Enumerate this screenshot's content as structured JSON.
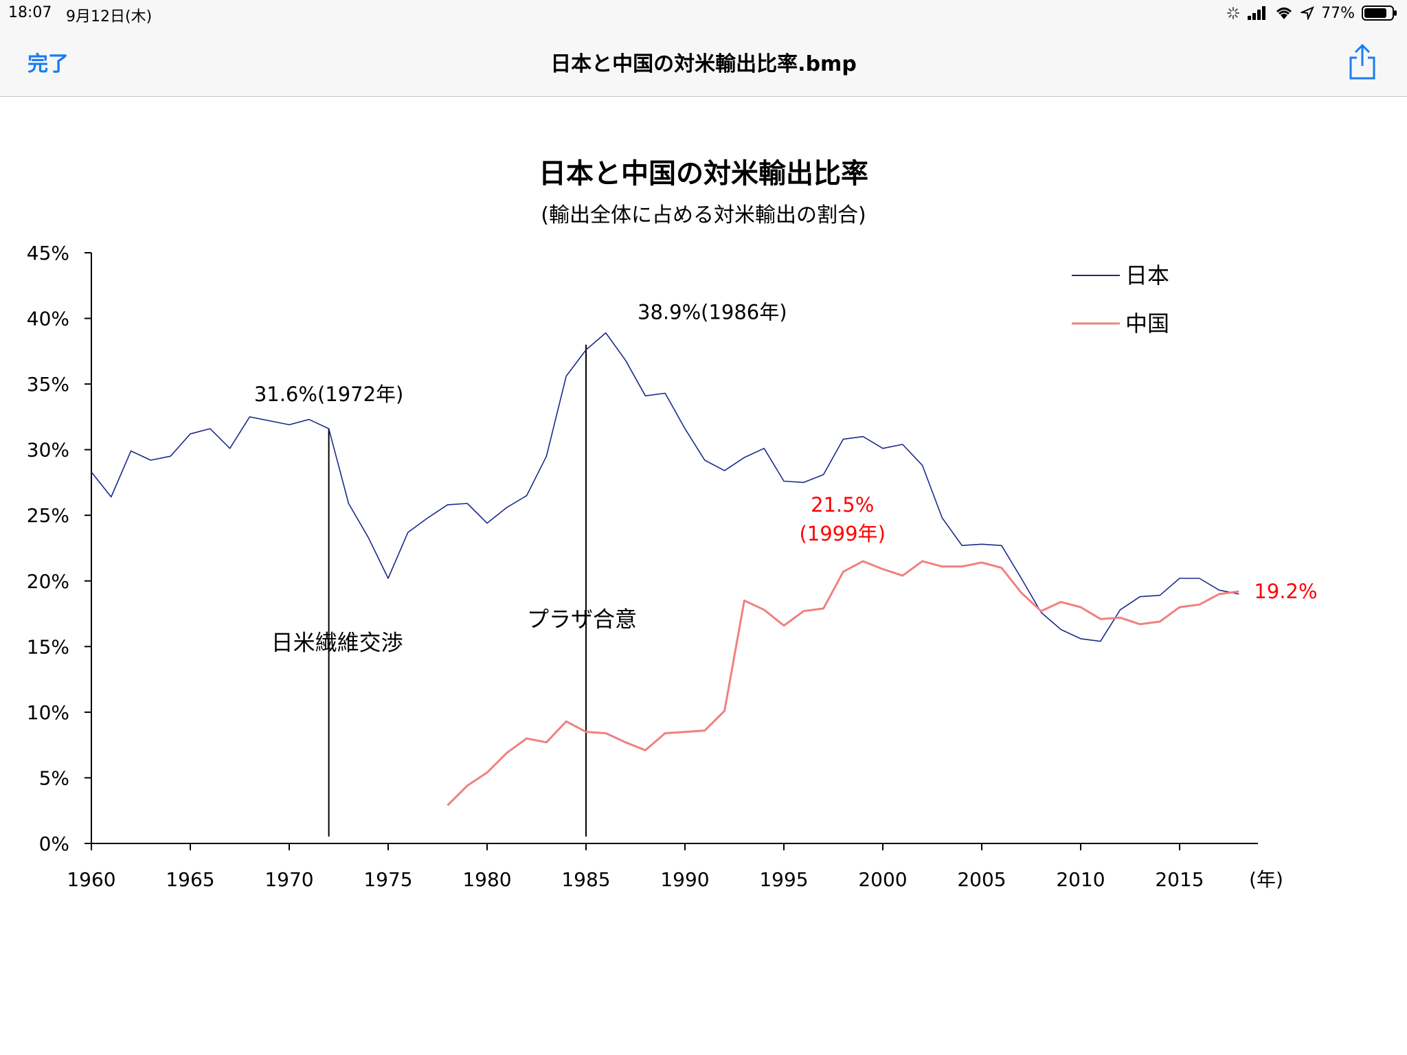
{
  "status": {
    "time": "18:07",
    "date": "9月12日(木)",
    "battery": "77%",
    "icons": [
      "activity-spinner-icon",
      "signal-icon",
      "wifi-icon",
      "location-icon",
      "battery-icon"
    ]
  },
  "nav": {
    "done_label": "完了",
    "title": "日本と中国の対米輸出比率.bmp",
    "share_icon": "share-icon",
    "accent": "#1a7cf5"
  },
  "chart_data": {
    "type": "line",
    "title": "日本と中国の対米輸出比率",
    "subtitle": "(輸出全体に占める対米輸出の割合)",
    "xlabel": "(年)",
    "ylabel": "",
    "xlim": [
      1960,
      2019
    ],
    "ylim": [
      0,
      45
    ],
    "x_ticks": [
      "1960",
      "1965",
      "1970",
      "1975",
      "1980",
      "1985",
      "1990",
      "1995",
      "2000",
      "2005",
      "2010",
      "2015"
    ],
    "y_ticks": [
      "0%",
      "5%",
      "10%",
      "15%",
      "20%",
      "25%",
      "30%",
      "35%",
      "40%",
      "45%"
    ],
    "legend_position": "top-right",
    "grid": false,
    "series": [
      {
        "name": "日本",
        "color": "#1a2a8a",
        "x": [
          1960,
          1961,
          1962,
          1963,
          1964,
          1965,
          1966,
          1967,
          1968,
          1969,
          1970,
          1971,
          1972,
          1973,
          1974,
          1975,
          1976,
          1977,
          1978,
          1979,
          1980,
          1981,
          1982,
          1983,
          1984,
          1985,
          1986,
          1987,
          1988,
          1989,
          1990,
          1991,
          1992,
          1993,
          1994,
          1995,
          1996,
          1997,
          1998,
          1999,
          2000,
          2001,
          2002,
          2003,
          2004,
          2005,
          2006,
          2007,
          2008,
          2009,
          2010,
          2011,
          2012,
          2013,
          2014,
          2015,
          2016,
          2017,
          2018
        ],
        "values": [
          28.3,
          26.4,
          29.9,
          29.2,
          29.5,
          31.2,
          31.6,
          30.1,
          32.5,
          32.2,
          31.9,
          32.3,
          31.6,
          25.9,
          23.3,
          20.2,
          23.7,
          24.8,
          25.8,
          25.9,
          24.4,
          25.6,
          26.5,
          29.5,
          35.6,
          37.6,
          38.9,
          36.8,
          34.1,
          34.3,
          31.6,
          29.2,
          28.4,
          29.4,
          30.1,
          27.6,
          27.5,
          28.1,
          30.8,
          31.0,
          30.1,
          30.4,
          28.8,
          24.8,
          22.7,
          22.8,
          22.7,
          20.2,
          17.6,
          16.3,
          15.6,
          15.4,
          17.8,
          18.8,
          18.9,
          20.2,
          20.2,
          19.3,
          19.0
        ]
      },
      {
        "name": "中国",
        "color": "#f08080",
        "x": [
          1978,
          1979,
          1980,
          1981,
          1982,
          1983,
          1984,
          1985,
          1986,
          1987,
          1988,
          1989,
          1990,
          1991,
          1992,
          1993,
          1994,
          1995,
          1996,
          1997,
          1998,
          1999,
          2000,
          2001,
          2002,
          2003,
          2004,
          2005,
          2006,
          2007,
          2008,
          2009,
          2010,
          2011,
          2012,
          2013,
          2014,
          2015,
          2016,
          2017,
          2018
        ],
        "values": [
          2.9,
          4.4,
          5.4,
          6.9,
          8.0,
          7.7,
          9.3,
          8.5,
          8.4,
          7.7,
          7.1,
          8.4,
          8.5,
          8.6,
          10.1,
          18.5,
          17.8,
          16.6,
          17.7,
          17.9,
          20.7,
          21.5,
          20.9,
          20.4,
          21.5,
          21.1,
          21.1,
          21.4,
          21.0,
          19.1,
          17.7,
          18.4,
          18.0,
          17.1,
          17.2,
          16.7,
          16.9,
          18.0,
          18.2,
          19.0,
          19.2
        ]
      }
    ],
    "annotations": [
      {
        "text": "31.6%(1972年)",
        "x": 1972,
        "y": 31.6,
        "color": "#000000"
      },
      {
        "text": "38.9%(1986年)",
        "x": 1986,
        "y": 38.9,
        "color": "#000000"
      },
      {
        "text": "21.5%",
        "x": 1999,
        "y": 21.5,
        "color": "#ff0000"
      },
      {
        "text": "(1999年)",
        "x": 1999,
        "y": 21.5,
        "color": "#ff0000"
      },
      {
        "text": "19.2%",
        "x": 2018,
        "y": 19.2,
        "color": "#ff0000"
      },
      {
        "text": "日米繊維交渉",
        "x": 1972,
        "y": 14,
        "color": "#000000"
      },
      {
        "text": "プラザ合意",
        "x": 1985,
        "y": 16.5,
        "color": "#000000"
      }
    ],
    "event_lines": [
      1972,
      1985
    ]
  }
}
